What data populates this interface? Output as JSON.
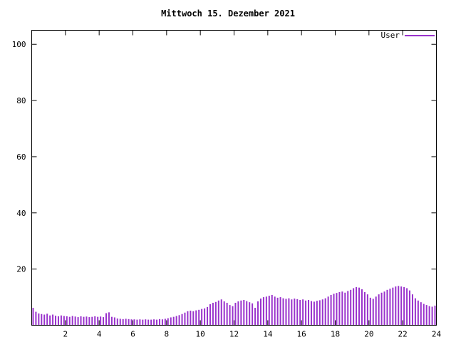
{
  "window": {
    "background": "#ffffff"
  },
  "colors": {
    "axis": "#000000",
    "text": "#000000",
    "series_user": "#9932CC",
    "background": "#ffffff"
  },
  "chart_data": {
    "type": "bar",
    "title": "Mittwoch 15. Dezember 2021",
    "xlabel": "",
    "ylabel": "",
    "xlim": [
      0,
      24
    ],
    "ylim": [
      0,
      105
    ],
    "x_ticks": [
      2,
      4,
      6,
      8,
      10,
      12,
      14,
      16,
      18,
      20,
      22,
      24
    ],
    "y_ticks": [
      20,
      40,
      60,
      80,
      100
    ],
    "grid": false,
    "legend_position": "top-right",
    "bar_style": "impulses",
    "series": [
      {
        "name": "User",
        "color": "#9932CC",
        "interval_minutes": 10,
        "start_hour": 0,
        "values": [
          6.2,
          4.8,
          4.2,
          4.0,
          3.8,
          4.1,
          3.5,
          3.8,
          3.4,
          3.2,
          3.5,
          3.3,
          3.2,
          3.0,
          3.3,
          3.1,
          2.9,
          3.2,
          3.0,
          3.1,
          2.9,
          3.0,
          3.2,
          3.0,
          3.1,
          2.9,
          4.3,
          4.6,
          3.0,
          2.8,
          2.4,
          2.3,
          2.2,
          2.3,
          2.2,
          2.1,
          2.1,
          2.0,
          2.1,
          2.0,
          2.1,
          2.0,
          2.0,
          2.1,
          2.0,
          2.2,
          2.1,
          2.3,
          2.5,
          2.8,
          3.0,
          3.3,
          3.6,
          4.0,
          4.5,
          5.0,
          5.2,
          5.0,
          5.3,
          5.5,
          5.8,
          6.0,
          6.5,
          7.5,
          8.0,
          8.3,
          8.8,
          9.2,
          8.5,
          8.0,
          7.2,
          6.8,
          8.0,
          8.5,
          8.8,
          9.0,
          8.6,
          8.2,
          7.8,
          6.2,
          8.5,
          9.5,
          10.0,
          10.2,
          10.5,
          10.8,
          10.2,
          9.8,
          10.0,
          9.6,
          9.4,
          9.6,
          9.2,
          9.5,
          9.3,
          9.0,
          9.2,
          8.8,
          9.0,
          8.6,
          8.4,
          8.7,
          8.9,
          9.2,
          9.6,
          10.2,
          10.8,
          11.2,
          11.5,
          11.8,
          12.0,
          11.6,
          12.2,
          12.6,
          13.2,
          13.6,
          13.4,
          12.8,
          11.8,
          11.0,
          9.8,
          9.4,
          10.2,
          11.0,
          11.6,
          12.0,
          12.6,
          13.0,
          13.4,
          13.8,
          14.0,
          13.8,
          13.6,
          13.2,
          12.4,
          11.0,
          9.6,
          8.8,
          8.2,
          7.6,
          7.2,
          6.8,
          6.6,
          7.0
        ]
      }
    ]
  }
}
